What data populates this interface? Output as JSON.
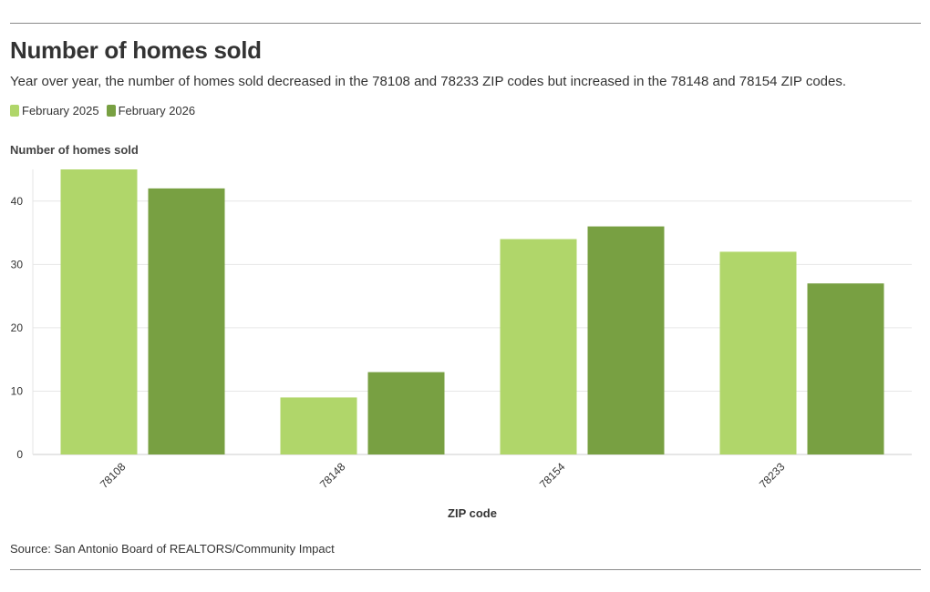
{
  "header": {
    "title": "Number of homes sold",
    "subtitle": "Year over year, the number of homes sold decreased in the 78108 and 78233 ZIP codes but increased in the 78148 and 78154 ZIP codes."
  },
  "footer": {
    "source": "Source: San Antonio Board of REALTORS/Community Impact"
  },
  "colors": {
    "series_2025": "#b0d66a",
    "series_2026": "#78a042",
    "grid": "#e6e6e6",
    "axis": "#cccccc"
  },
  "chart_data": {
    "type": "bar",
    "title": "Number of homes sold",
    "xlabel": "ZIP code",
    "ylabel": "Number of homes sold",
    "categories": [
      "78108",
      "78148",
      "78154",
      "78233"
    ],
    "series": [
      {
        "name": "February 2025",
        "values": [
          45,
          9,
          34,
          32
        ]
      },
      {
        "name": "February 2026",
        "values": [
          42,
          13,
          36,
          27
        ]
      }
    ],
    "ylim": [
      0,
      45
    ],
    "yticks": [
      0,
      10,
      20,
      30,
      40
    ],
    "grid": true,
    "legend": "top-left"
  }
}
